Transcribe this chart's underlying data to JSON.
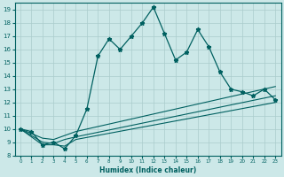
{
  "xlabel": "Humidex (Indice chaleur)",
  "xlim": [
    -0.5,
    23.5
  ],
  "ylim": [
    8,
    19.5
  ],
  "yticks": [
    8,
    9,
    10,
    11,
    12,
    13,
    14,
    15,
    16,
    17,
    18,
    19
  ],
  "xticks": [
    0,
    1,
    2,
    3,
    4,
    5,
    6,
    7,
    8,
    9,
    10,
    11,
    12,
    13,
    14,
    15,
    16,
    17,
    18,
    19,
    20,
    21,
    22,
    23
  ],
  "bg_color": "#cce8e8",
  "line_color": "#006060",
  "grid_color": "#aacccc",
  "main_line_x": [
    0,
    1,
    2,
    3,
    4,
    5,
    6,
    7,
    8,
    9,
    10,
    11,
    12,
    13,
    14,
    15,
    16,
    17,
    18,
    19,
    20,
    21,
    22,
    23
  ],
  "main_line_y": [
    10.0,
    9.8,
    8.8,
    9.0,
    8.5,
    9.5,
    11.5,
    15.5,
    16.8,
    16.0,
    17.0,
    18.0,
    19.2,
    17.2,
    15.2,
    15.8,
    17.5,
    16.2,
    14.3,
    13.0,
    12.8,
    12.5,
    13.0,
    12.2
  ],
  "fan_lines": [
    {
      "x": [
        0,
        2,
        3,
        4,
        5,
        23
      ],
      "y": [
        10.0,
        9.3,
        9.2,
        9.5,
        9.8,
        13.2
      ]
    },
    {
      "x": [
        0,
        2,
        3,
        4,
        5,
        23
      ],
      "y": [
        10.0,
        9.0,
        8.9,
        9.2,
        9.4,
        12.5
      ]
    },
    {
      "x": [
        0,
        2,
        3,
        4,
        5,
        23
      ],
      "y": [
        10.0,
        8.8,
        8.8,
        8.7,
        9.2,
        12.0
      ]
    }
  ]
}
